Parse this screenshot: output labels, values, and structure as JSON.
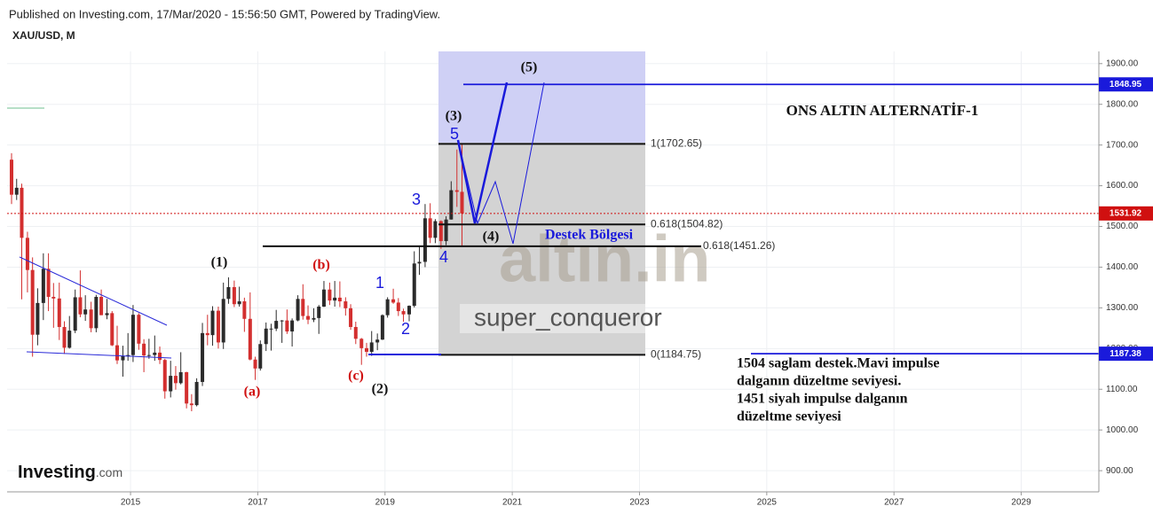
{
  "header": {
    "published": "Published on Investing.com, 17/Mar/2020 - 15:56:50 GMT, Powered by TradingView.",
    "symbol": "XAU/USD, M"
  },
  "chart_data": {
    "type": "candlestick",
    "title": "ONS ALTIN ALTERNATİF-1",
    "x": [
      2013.04,
      2013.13,
      2013.21,
      2013.29,
      2013.38,
      2013.46,
      2013.54,
      2013.63,
      2013.71,
      2013.79,
      2013.88,
      2013.96,
      2014.04,
      2014.13,
      2014.21,
      2014.29,
      2014.38,
      2014.46,
      2014.54,
      2014.63,
      2014.71,
      2014.79,
      2014.88,
      2014.96,
      2015.04,
      2015.13,
      2015.21,
      2015.29,
      2015.38,
      2015.46,
      2015.54,
      2015.63,
      2015.71,
      2015.79,
      2015.88,
      2015.96,
      2016.04,
      2016.13,
      2016.21,
      2016.29,
      2016.38,
      2016.46,
      2016.54,
      2016.63,
      2016.71,
      2016.79,
      2016.88,
      2016.96,
      2017.04,
      2017.13,
      2017.21,
      2017.29,
      2017.38,
      2017.46,
      2017.54,
      2017.63,
      2017.71,
      2017.79,
      2017.88,
      2017.96,
      2018.04,
      2018.13,
      2018.21,
      2018.29,
      2018.38,
      2018.46,
      2018.54,
      2018.63,
      2018.71,
      2018.79,
      2018.88,
      2018.96,
      2019.04,
      2019.13,
      2019.21,
      2019.29,
      2019.38,
      2019.46,
      2019.54,
      2019.63,
      2019.71,
      2019.79,
      2019.88,
      2019.96,
      2020.04,
      2020.13,
      2020.21
    ],
    "open": [
      1675,
      1664,
      1578,
      1595,
      1472,
      1393,
      1234,
      1312,
      1396,
      1327,
      1323,
      1253,
      1202,
      1244,
      1326,
      1284,
      1296,
      1250,
      1327,
      1282,
      1287,
      1208,
      1171,
      1182,
      1184,
      1283,
      1212,
      1183,
      1184,
      1190,
      1172,
      1095,
      1133,
      1115,
      1142,
      1065,
      1061,
      1118,
      1238,
      1233,
      1293,
      1215,
      1322,
      1351,
      1309,
      1316,
      1273,
      1173,
      1151,
      1211,
      1249,
      1249,
      1268,
      1269,
      1242,
      1269,
      1322,
      1280,
      1271,
      1275,
      1303,
      1345,
      1318,
      1325,
      1316,
      1299,
      1253,
      1224,
      1201,
      1192,
      1215,
      1222,
      1282,
      1321,
      1313,
      1292,
      1284,
      1305,
      1409,
      1413,
      1520,
      1472,
      1513,
      1464,
      1517,
      1589,
      1585
    ],
    "high": [
      1695,
      1680,
      1617,
      1605,
      1487,
      1424,
      1348,
      1434,
      1434,
      1361,
      1362,
      1267,
      1280,
      1345,
      1392,
      1331,
      1315,
      1332,
      1345,
      1322,
      1292,
      1256,
      1207,
      1238,
      1307,
      1287,
      1223,
      1224,
      1232,
      1205,
      1175,
      1170,
      1157,
      1191,
      1143,
      1088,
      1127,
      1263,
      1283,
      1304,
      1303,
      1362,
      1375,
      1367,
      1352,
      1325,
      1338,
      1180,
      1220,
      1264,
      1261,
      1295,
      1270,
      1296,
      1274,
      1331,
      1358,
      1306,
      1299,
      1307,
      1366,
      1362,
      1366,
      1365,
      1326,
      1309,
      1266,
      1226,
      1214,
      1243,
      1237,
      1284,
      1326,
      1347,
      1324,
      1298,
      1306,
      1439,
      1453,
      1555,
      1557,
      1518,
      1515,
      1525,
      1611,
      1689,
      1704
    ],
    "low": [
      1625,
      1555,
      1565,
      1321,
      1338,
      1180,
      1208,
      1270,
      1292,
      1251,
      1221,
      1187,
      1200,
      1238,
      1277,
      1268,
      1240,
      1240,
      1282,
      1272,
      1206,
      1162,
      1131,
      1170,
      1167,
      1197,
      1142,
      1175,
      1170,
      1162,
      1077,
      1080,
      1099,
      1112,
      1053,
      1046,
      1058,
      1108,
      1208,
      1207,
      1200,
      1199,
      1310,
      1302,
      1303,
      1241,
      1171,
      1123,
      1146,
      1194,
      1195,
      1243,
      1214,
      1236,
      1205,
      1267,
      1271,
      1260,
      1265,
      1236,
      1302,
      1307,
      1303,
      1302,
      1281,
      1246,
      1211,
      1160,
      1180,
      1182,
      1196,
      1221,
      1276,
      1310,
      1280,
      1266,
      1267,
      1301,
      1381,
      1400,
      1459,
      1459,
      1445,
      1454,
      1517,
      1548,
      1451
    ],
    "close": [
      1664,
      1578,
      1595,
      1472,
      1393,
      1234,
      1312,
      1396,
      1327,
      1323,
      1253,
      1202,
      1244,
      1326,
      1284,
      1296,
      1250,
      1327,
      1282,
      1287,
      1208,
      1171,
      1182,
      1184,
      1283,
      1212,
      1183,
      1184,
      1190,
      1172,
      1095,
      1133,
      1115,
      1142,
      1065,
      1061,
      1118,
      1238,
      1233,
      1293,
      1215,
      1322,
      1351,
      1309,
      1316,
      1273,
      1173,
      1151,
      1211,
      1249,
      1249,
      1268,
      1269,
      1242,
      1269,
      1322,
      1280,
      1271,
      1275,
      1303,
      1345,
      1318,
      1325,
      1316,
      1299,
      1253,
      1224,
      1201,
      1192,
      1215,
      1222,
      1282,
      1321,
      1313,
      1292,
      1284,
      1305,
      1409,
      1413,
      1520,
      1472,
      1513,
      1464,
      1517,
      1589,
      1585,
      1532
    ],
    "up_color": "#2b2b2b",
    "down_color": "#d32f2f",
    "xlim": [
      2013.06,
      2030.22
    ],
    "xticks": [
      2015,
      2017,
      2019,
      2021,
      2023,
      2025,
      2027,
      2029
    ],
    "ylim": [
      848,
      1930
    ],
    "yticks": [
      {
        "value": 900,
        "label": "900.00"
      },
      {
        "value": 1000,
        "label": "1000.00"
      },
      {
        "value": 1100,
        "label": "1100.00"
      },
      {
        "value": 1200,
        "label": "1200.00"
      },
      {
        "value": 1300,
        "label": "1300.00"
      },
      {
        "value": 1400,
        "label": "1400.00"
      },
      {
        "value": 1500,
        "label": "1500.00"
      },
      {
        "value": 1600,
        "label": "1600.00"
      },
      {
        "value": 1700,
        "label": "1700.00"
      },
      {
        "value": 1800,
        "label": "1800.00"
      },
      {
        "value": 1900,
        "label": "1900.00"
      }
    ],
    "grid": true,
    "fib_levels": [
      {
        "value": 1702.65,
        "label": "1(1702.65)"
      },
      {
        "value": 1504.82,
        "label": "0.618(1504.82)"
      },
      {
        "value": 1451.26,
        "label": "0.618(1451.26)"
      },
      {
        "value": 1184.75,
        "label": "0(1184.75)"
      }
    ],
    "price_tags": [
      {
        "value": 1848.95,
        "color": "#1a1adb"
      },
      {
        "value": 1531.92,
        "color": "#d01010"
      },
      {
        "value": 1187.38,
        "color": "#1a1adb"
      }
    ],
    "wave_labels": [
      "(1)",
      "(a)",
      "(b)",
      "(c)",
      "(2)",
      "1",
      "2",
      "3",
      "4",
      "5",
      "(3)",
      "(4)",
      "(5)"
    ],
    "zone_label": "Destek Bölgesi",
    "note": [
      "1504 saglam destek.Mavi impulse",
      "dalganın düzeltme seviyesi.",
      "1451 siyah impulse dalganın",
      "düzeltme seviyesi"
    ],
    "watermark": "altın.in",
    "author": "super_conqueror",
    "logo": [
      "Investing",
      ".com"
    ]
  }
}
